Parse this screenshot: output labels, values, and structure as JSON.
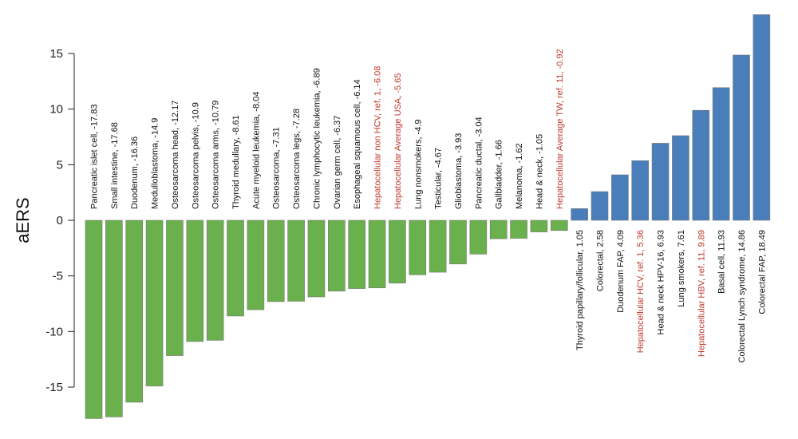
{
  "chart_data": {
    "type": "bar",
    "title": "",
    "xlabel": "",
    "ylabel": "aERS",
    "ylim": [
      -18,
      18.5
    ],
    "yticks": [
      -15,
      -10,
      -5,
      0,
      5,
      10,
      15
    ],
    "grid": false,
    "legend": "none",
    "colors": {
      "negative": "#6ab04c",
      "positive": "#4a7ebb",
      "label": "#111111",
      "highlight": "#c0392b"
    },
    "bars": [
      {
        "label": "Pancreatic islet cell, -17.83",
        "value": -17.83,
        "highlight": false
      },
      {
        "label": "Small intestine, -17.68",
        "value": -17.68,
        "highlight": false
      },
      {
        "label": "Duodenum, -16.36",
        "value": -16.36,
        "highlight": false
      },
      {
        "label": "Medulloblastoma, -14.9",
        "value": -14.9,
        "highlight": false
      },
      {
        "label": "Osteosarcoma head, -12.17",
        "value": -12.17,
        "highlight": false
      },
      {
        "label": "Osteosarcoma pelvis, -10.9",
        "value": -10.9,
        "highlight": false
      },
      {
        "label": "Osteosarcoma arms, -10.79",
        "value": -10.79,
        "highlight": false
      },
      {
        "label": "Thyroid medullary, -8.61",
        "value": -8.61,
        "highlight": false
      },
      {
        "label": "Acute myeloid leukemia, -8.04",
        "value": -8.04,
        "highlight": false
      },
      {
        "label": "Osteosarcoma, -7.31",
        "value": -7.31,
        "highlight": false
      },
      {
        "label": "Osteosarcoma legs, -7.28",
        "value": -7.28,
        "highlight": false
      },
      {
        "label": "Chronic lymphocytic leukemia, -6.89",
        "value": -6.89,
        "highlight": false
      },
      {
        "label": "Ovarian germ cell, -6.37",
        "value": -6.37,
        "highlight": false
      },
      {
        "label": "Esophageal squamous cell, -6.14",
        "value": -6.14,
        "highlight": false
      },
      {
        "label": "Hepatocellular non HCV, ref. 1, -6.08",
        "value": -6.08,
        "highlight": true
      },
      {
        "label": "Hepatocellular Average USA, -5.65",
        "value": -5.65,
        "highlight": true
      },
      {
        "label": "Lung nonsmokers, -4.9",
        "value": -4.9,
        "highlight": false
      },
      {
        "label": "Testicular, -4.67",
        "value": -4.67,
        "highlight": false
      },
      {
        "label": "Glioblastoma, -3.93",
        "value": -3.93,
        "highlight": false
      },
      {
        "label": "Pancreatic ductal, -3.04",
        "value": -3.04,
        "highlight": false
      },
      {
        "label": "Gallbladder, -1.66",
        "value": -1.66,
        "highlight": false
      },
      {
        "label": "Melanoma, -1.62",
        "value": -1.62,
        "highlight": false
      },
      {
        "label": "Head & neck, -1.05",
        "value": -1.05,
        "highlight": false
      },
      {
        "label": "Hepatocellular Average TW, ref. 11, -0.92",
        "value": -0.92,
        "highlight": true
      },
      {
        "label": "Thyroid papillary/follicular, 1.05",
        "value": 1.05,
        "highlight": false
      },
      {
        "label": "Colorectal, 2.58",
        "value": 2.58,
        "highlight": false
      },
      {
        "label": "Duodenum FAP, 4.09",
        "value": 4.09,
        "highlight": false
      },
      {
        "label": "Hepatocellular HCV, ref. 1, 5.36",
        "value": 5.36,
        "highlight": true
      },
      {
        "label": "Head & neck HPV-16, 6.93",
        "value": 6.93,
        "highlight": false
      },
      {
        "label": "Lung smokers, 7.61",
        "value": 7.61,
        "highlight": false
      },
      {
        "label": "Hepatocellular HBV, ref. 11, 9.89",
        "value": 9.89,
        "highlight": true
      },
      {
        "label": "Basal cell, 11.93",
        "value": 11.93,
        "highlight": false
      },
      {
        "label": "Colorectal Lynch syndrome, 14.86",
        "value": 14.86,
        "highlight": false
      },
      {
        "label": "Colorectal FAP, 18.49",
        "value": 18.49,
        "highlight": false
      }
    ]
  }
}
